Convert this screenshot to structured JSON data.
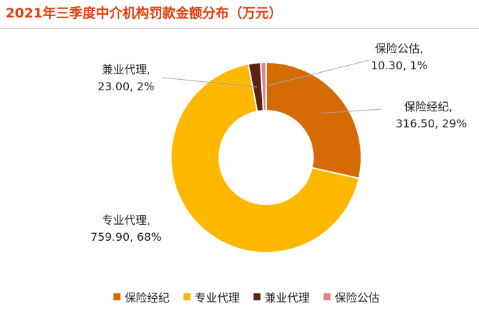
{
  "chart_data": {
    "type": "pie",
    "title": "2021年三季度中介机构罚款金额分布（万元）",
    "donut": true,
    "slices": [
      {
        "name": "保险经纪",
        "value": 316.5,
        "percent": "29%",
        "label_value": "316.50",
        "color": "#D56B05"
      },
      {
        "name": "专业代理",
        "value": 759.9,
        "percent": "68%",
        "label_value": "759.90",
        "color": "#FFB700"
      },
      {
        "name": "兼业代理",
        "value": 23.0,
        "percent": "2%",
        "label_value": "23.00",
        "color": "#5C2215"
      },
      {
        "name": "保险公估",
        "value": 10.3,
        "percent": "1%",
        "label_value": "10.30",
        "color": "#E0838C"
      }
    ],
    "legend_position": "bottom"
  }
}
